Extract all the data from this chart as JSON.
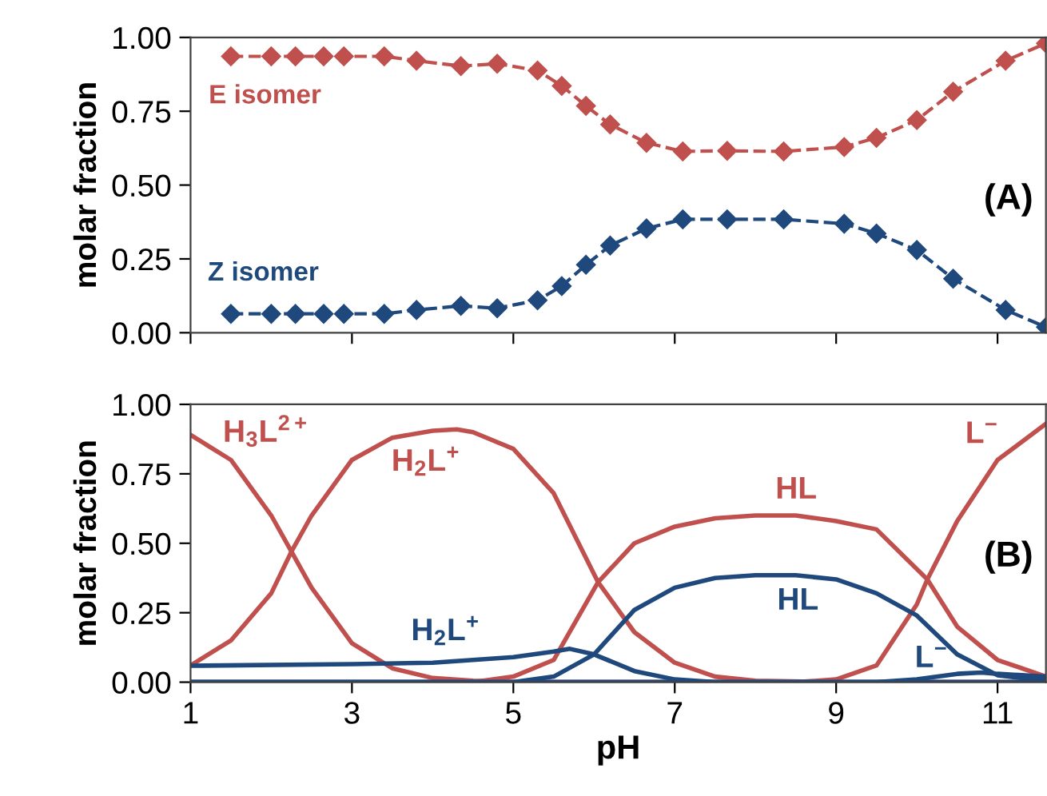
{
  "chart_data": [
    {
      "type": "line",
      "ylabel": "molar fraction",
      "xlim": [
        1,
        11.6
      ],
      "ylim": [
        0,
        1
      ],
      "xticks": [
        1,
        3,
        5,
        7,
        9,
        11
      ],
      "yticks": [
        {
          "value": 0,
          "label": "0.00"
        },
        {
          "value": 0.25,
          "label": "0.25"
        },
        {
          "value": 0.5,
          "label": "0.50"
        },
        {
          "value": 0.75,
          "label": "0.75"
        },
        {
          "value": 1,
          "label": "1.00"
        }
      ],
      "tick_labels": "y",
      "marker": "diamond",
      "line_style": "dashed",
      "grid": false,
      "legend": false,
      "x": [
        1.5,
        2.0,
        2.3,
        2.65,
        2.9,
        3.4,
        3.8,
        4.35,
        4.8,
        5.3,
        5.6,
        5.9,
        6.2,
        6.65,
        7.1,
        7.65,
        8.35,
        9.1,
        9.5,
        10.0,
        10.45,
        11.1,
        11.6
      ],
      "series": [
        {
          "name": "E isomer",
          "color": "#c0504d",
          "values": [
            0.936,
            0.936,
            0.936,
            0.936,
            0.936,
            0.936,
            0.921,
            0.903,
            0.911,
            0.888,
            0.836,
            0.768,
            0.705,
            0.643,
            0.614,
            0.616,
            0.614,
            0.629,
            0.66,
            0.72,
            0.816,
            0.921,
            0.98
          ]
        },
        {
          "name": "Z isomer",
          "color": "#1f497d",
          "values": [
            0.064,
            0.064,
            0.064,
            0.064,
            0.064,
            0.064,
            0.077,
            0.091,
            0.083,
            0.11,
            0.158,
            0.23,
            0.295,
            0.353,
            0.384,
            0.384,
            0.384,
            0.369,
            0.336,
            0.28,
            0.183,
            0.077,
            0.019
          ]
        }
      ],
      "annotations": [
        "(A)"
      ]
    },
    {
      "type": "line",
      "xlabel": "pH",
      "ylabel": "molar fraction",
      "xlim": [
        1,
        11.6
      ],
      "ylim": [
        0,
        1
      ],
      "xticks": [
        1,
        3,
        5,
        7,
        9,
        11
      ],
      "yticks": [
        {
          "value": 0,
          "label": "0.00"
        },
        {
          "value": 0.25,
          "label": "0.25"
        },
        {
          "value": 0.5,
          "label": "0.50"
        },
        {
          "value": 0.75,
          "label": "0.75"
        },
        {
          "value": 1,
          "label": "1.00"
        }
      ],
      "marker": "none",
      "line_style": "solid",
      "grid": false,
      "legend": false,
      "series": [
        {
          "name": "H$_{3}$L$^{2+}$",
          "color": "#c0504d",
          "x": [
            1,
            1.5,
            2,
            2.25,
            2.5,
            3,
            3.5,
            4,
            4.5,
            5,
            6,
            8,
            10,
            11.6
          ],
          "values": [
            0.89,
            0.8,
            0.6,
            0.47,
            0.34,
            0.14,
            0.05,
            0.015,
            0.005,
            0,
            0,
            0,
            0,
            0
          ]
        },
        {
          "name": "H$_{2}$L$^{+}$",
          "color": "#c0504d",
          "x": [
            1,
            1.5,
            2,
            2.25,
            2.5,
            3,
            3.5,
            4,
            4.3,
            4.5,
            5,
            5.5,
            6.05,
            6.5,
            7,
            7.5,
            8,
            9,
            11.6
          ],
          "values": [
            0.06,
            0.15,
            0.32,
            0.47,
            0.6,
            0.8,
            0.88,
            0.905,
            0.91,
            0.9,
            0.84,
            0.68,
            0.36,
            0.18,
            0.07,
            0.02,
            0.005,
            0,
            0
          ]
        },
        {
          "name": "HL",
          "color": "#c0504d",
          "x": [
            1,
            4.5,
            5,
            5.5,
            6.05,
            6.5,
            7,
            7.5,
            8,
            8.5,
            9,
            9.5,
            10.13,
            10.5,
            11,
            11.6
          ],
          "values": [
            0,
            0,
            0.02,
            0.08,
            0.36,
            0.5,
            0.56,
            0.59,
            0.6,
            0.6,
            0.58,
            0.55,
            0.37,
            0.2,
            0.08,
            0.02
          ]
        },
        {
          "name": "L$^{−}$",
          "color": "#c0504d",
          "x": [
            1,
            8.5,
            9,
            9.5,
            10,
            10.13,
            10.5,
            11,
            11.6
          ],
          "values": [
            0,
            0,
            0.01,
            0.06,
            0.28,
            0.37,
            0.58,
            0.8,
            0.93
          ]
        },
        {
          "name": "H$_{2}$L$^{+}$",
          "color": "#1f497d",
          "x": [
            1,
            3,
            4,
            5,
            5.5,
            5.7,
            6,
            6.5,
            7,
            7.5,
            11.6
          ],
          "values": [
            0.059,
            0.065,
            0.07,
            0.09,
            0.11,
            0.12,
            0.1,
            0.04,
            0.01,
            0,
            0
          ]
        },
        {
          "name": "HL",
          "color": "#1f497d",
          "x": [
            1,
            5,
            5.5,
            6,
            6.5,
            7,
            7.5,
            8,
            8.5,
            9,
            9.5,
            10,
            10.5,
            11,
            11.6
          ],
          "values": [
            0,
            0,
            0.02,
            0.1,
            0.26,
            0.34,
            0.375,
            0.385,
            0.385,
            0.37,
            0.32,
            0.24,
            0.1,
            0.025,
            0.005
          ]
        },
        {
          "name": "L$^{−}$",
          "color": "#1f497d",
          "x": [
            1,
            9.5,
            10,
            10.5,
            10.8,
            11,
            11.6
          ],
          "values": [
            0,
            0,
            0.01,
            0.03,
            0.035,
            0.03,
            0.02
          ]
        },
        {
          "color": "#1f497d",
          "x": [
            1,
            11.6
          ],
          "values": [
            0,
            0
          ]
        }
      ],
      "annotations": [
        "(B)"
      ]
    }
  ]
}
